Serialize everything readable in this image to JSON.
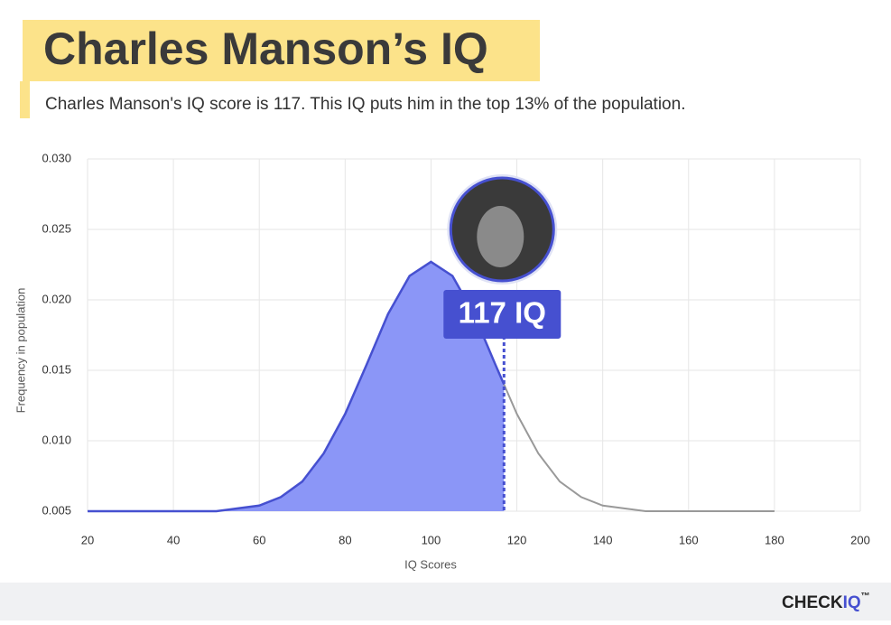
{
  "chart_data": {
    "type": "area",
    "title": "Charles Manson’s IQ",
    "subtitle": "Charles Manson's IQ score is 117. This IQ puts him in the top 13% of the population.",
    "x_label": "IQ Scores",
    "y_label": "Frequency in population",
    "x": [
      20,
      25,
      30,
      35,
      40,
      45,
      50,
      55,
      60,
      65,
      70,
      75,
      80,
      85,
      90,
      95,
      100,
      105,
      110,
      115,
      117,
      120,
      125,
      130,
      135,
      140,
      145,
      150,
      155,
      160,
      165,
      170,
      175,
      180
    ],
    "series": [
      {
        "color": "#4650d0",
        "values": [
          0.005,
          0.005,
          0.005,
          0.005,
          0.005,
          0.005,
          0.005,
          0.0052,
          0.0054,
          0.006,
          0.0071,
          0.0091,
          0.0119,
          0.0154,
          0.019,
          0.0217,
          0.0227,
          0.0217,
          0.019,
          0.0154,
          0.014,
          0.0119,
          0.0091,
          0.0071,
          0.006,
          0.0054,
          0.0052,
          0.005,
          0.005,
          0.005,
          0.005,
          0.005,
          0.005,
          0.005
        ]
      }
    ],
    "highlight_x": 117,
    "highlight_label": "117 IQ",
    "xlim": [
      20,
      200
    ],
    "ylim": [
      0.005,
      0.03
    ],
    "xticks": [
      20,
      40,
      60,
      80,
      100,
      120,
      140,
      160,
      180,
      200
    ],
    "yticks": [
      0.005,
      {
        "value": 0.01,
        "label": "0.010"
      },
      0.015,
      {
        "value": 0.02,
        "label": "0.020"
      },
      0.025,
      {
        "value": 0.03,
        "label": "0.030"
      }
    ],
    "grid": true
  },
  "brand": {
    "check": "CHECK",
    "iq": "IQ",
    "tm": "™"
  }
}
